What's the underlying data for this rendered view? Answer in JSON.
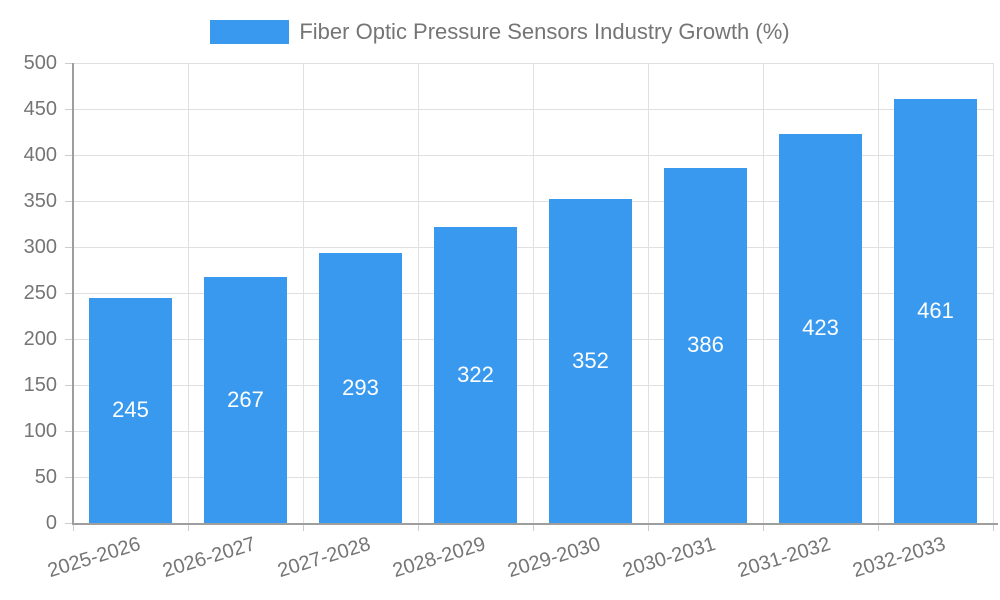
{
  "chart_data": {
    "type": "bar",
    "title": "Fiber Optic Pressure Sensors Industry Growth (%)",
    "legend_label": "Fiber Optic Pressure Sensors Industry Growth (%)",
    "legend_position": "top-center",
    "categories": [
      "2025-2026",
      "2026-2027",
      "2027-2028",
      "2028-2029",
      "2029-2030",
      "2030-2031",
      "2031-2032",
      "2032-2033"
    ],
    "values": [
      245,
      267,
      293,
      322,
      352,
      386,
      423,
      461
    ],
    "value_labels_position": "inside-center",
    "xlabel": "",
    "ylabel": "",
    "ylim": [
      0,
      500
    ],
    "ytick_step": 50,
    "yticks": [
      0,
      50,
      100,
      150,
      200,
      250,
      300,
      350,
      400,
      450,
      500
    ],
    "grid": "horizontal-and-vertical",
    "x_label_rotation_deg": -17,
    "colors": {
      "bar": "#3899ee",
      "value_label": "#ffffff",
      "grid_line": "#e0e0e0",
      "axis_line": "#9e9e9e",
      "tick_line": "#cccccc",
      "tick_label": "#757575",
      "legend_text": "#757575",
      "background": "#ffffff"
    }
  }
}
